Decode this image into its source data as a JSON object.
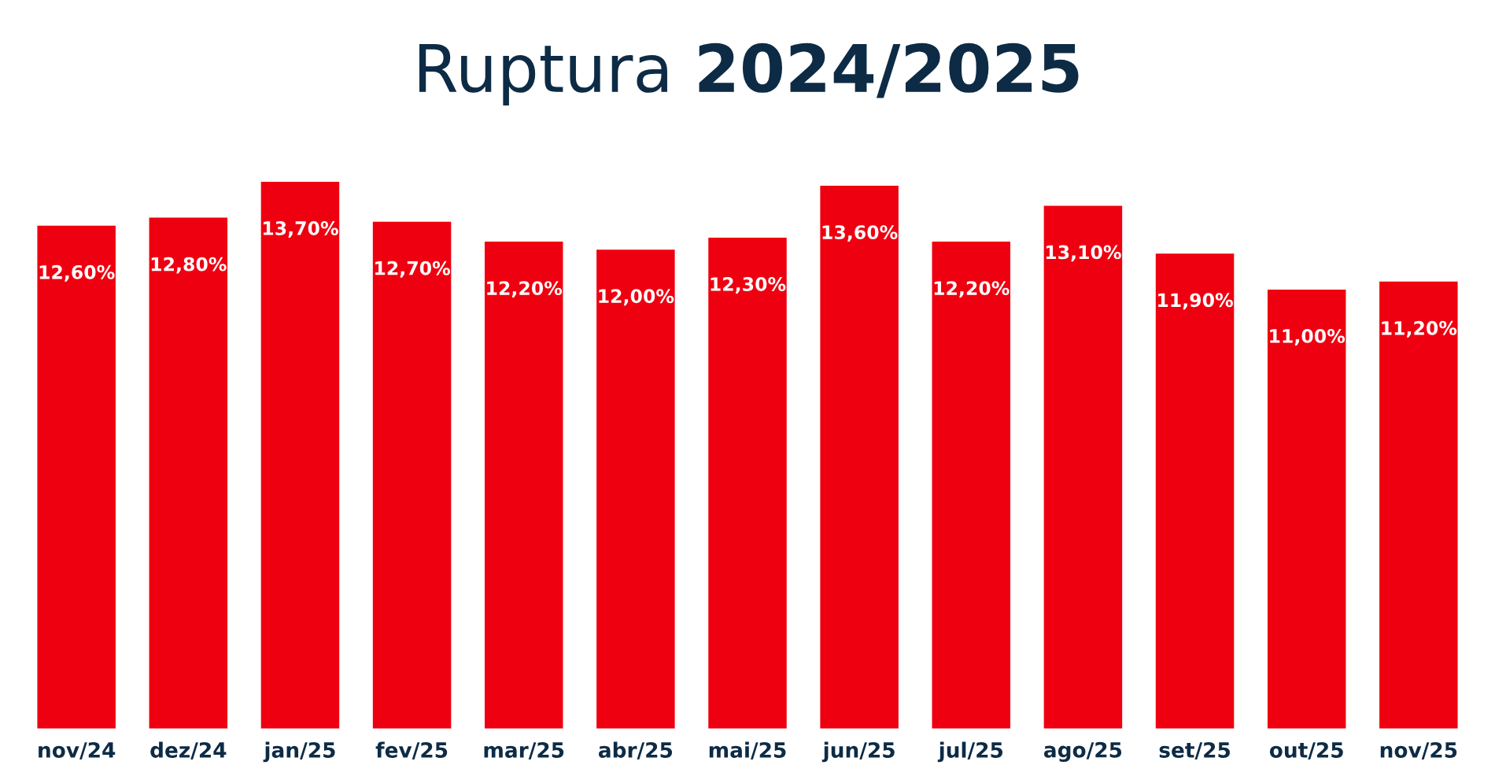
{
  "chart_data": {
    "type": "bar",
    "title": "Ruptura 2024/2025",
    "categories": [
      "nov/24",
      "dez/24",
      "jan/25",
      "fev/25",
      "mar/25",
      "abr/25",
      "mai/25",
      "jun/25",
      "jul/25",
      "ago/25",
      "set/25",
      "out/25",
      "nov/25"
    ],
    "values": [
      12.6,
      12.8,
      13.7,
      12.7,
      12.2,
      12.0,
      12.3,
      13.6,
      12.2,
      13.1,
      11.9,
      11.0,
      11.2
    ],
    "value_labels": [
      "12,60%",
      "12,80%",
      "13,70%",
      "12,70%",
      "12,20%",
      "12,00%",
      "12,30%",
      "13,60%",
      "12,20%",
      "13,10%",
      "11,90%",
      "11,00%",
      "11,20%"
    ],
    "color": "#ee0010",
    "tick_labels": "x",
    "grid": false,
    "legend": false
  }
}
